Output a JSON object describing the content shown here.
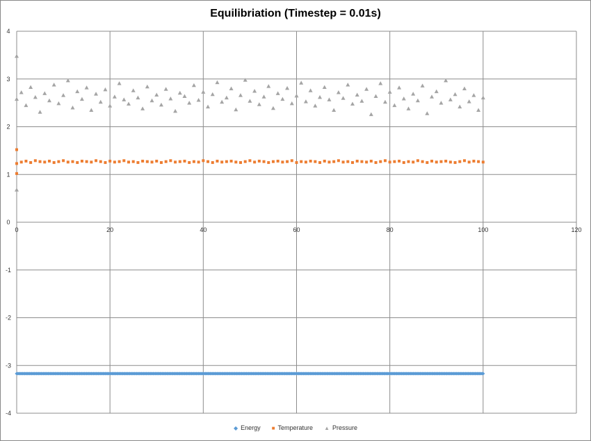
{
  "chart_data": {
    "type": "scatter",
    "title": "Equilibriation (Timestep = 0.01s)",
    "xlabel": "",
    "ylabel": "",
    "xlim": [
      0,
      120
    ],
    "ylim": [
      -4,
      4
    ],
    "xticks": [
      "0",
      "20",
      "40",
      "60",
      "80",
      "100",
      "120"
    ],
    "yticks": [
      "4",
      "3",
      "2",
      "1",
      "0",
      "-1",
      "-2",
      "-3",
      "-4"
    ],
    "grid": true,
    "legend_position": "bottom",
    "series": [
      {
        "name": "Energy",
        "color": "#5b9bd5",
        "marker": "diamond",
        "x": [
          0,
          1,
          2,
          3,
          4,
          5,
          6,
          7,
          8,
          9,
          10,
          11,
          12,
          13,
          14,
          15,
          16,
          17,
          18,
          19,
          20,
          21,
          22,
          23,
          24,
          25,
          26,
          27,
          28,
          29,
          30,
          31,
          32,
          33,
          34,
          35,
          36,
          37,
          38,
          39,
          40,
          41,
          42,
          43,
          44,
          45,
          46,
          47,
          48,
          49,
          50,
          51,
          52,
          53,
          54,
          55,
          56,
          57,
          58,
          59,
          60,
          61,
          62,
          63,
          64,
          65,
          66,
          67,
          68,
          69,
          70,
          71,
          72,
          73,
          74,
          75,
          76,
          77,
          78,
          79,
          80,
          81,
          82,
          83,
          84,
          85,
          86,
          87,
          88,
          89,
          90,
          91,
          92,
          93,
          94,
          95,
          96,
          97,
          98,
          99,
          100
        ],
        "y": [
          -3.17,
          -3.17,
          -3.17,
          -3.17,
          -3.17,
          -3.17,
          -3.17,
          -3.17,
          -3.17,
          -3.17,
          -3.17,
          -3.17,
          -3.17,
          -3.17,
          -3.17,
          -3.17,
          -3.17,
          -3.17,
          -3.17,
          -3.17,
          -3.17,
          -3.17,
          -3.17,
          -3.17,
          -3.17,
          -3.17,
          -3.17,
          -3.17,
          -3.17,
          -3.17,
          -3.17,
          -3.17,
          -3.17,
          -3.17,
          -3.17,
          -3.17,
          -3.17,
          -3.17,
          -3.17,
          -3.17,
          -3.17,
          -3.17,
          -3.17,
          -3.17,
          -3.17,
          -3.17,
          -3.17,
          -3.17,
          -3.17,
          -3.17,
          -3.17,
          -3.17,
          -3.17,
          -3.17,
          -3.17,
          -3.17,
          -3.17,
          -3.17,
          -3.17,
          -3.17,
          -3.17,
          -3.17,
          -3.17,
          -3.17,
          -3.17,
          -3.17,
          -3.17,
          -3.17,
          -3.17,
          -3.17,
          -3.17,
          -3.17,
          -3.17,
          -3.17,
          -3.17,
          -3.17,
          -3.17,
          -3.17,
          -3.17,
          -3.17,
          -3.17,
          -3.17,
          -3.17,
          -3.17,
          -3.17,
          -3.17,
          -3.17,
          -3.17,
          -3.17,
          -3.17,
          -3.17,
          -3.17,
          -3.17,
          -3.17,
          -3.17,
          -3.17,
          -3.17,
          -3.17,
          -3.17,
          -3.17,
          -3.17
        ]
      },
      {
        "name": "Temperature",
        "color": "#ed7d31",
        "marker": "square",
        "x": [
          0,
          0,
          0,
          1,
          2,
          3,
          4,
          5,
          6,
          7,
          8,
          9,
          10,
          11,
          12,
          13,
          14,
          15,
          16,
          17,
          18,
          19,
          20,
          21,
          22,
          23,
          24,
          25,
          26,
          27,
          28,
          29,
          30,
          31,
          32,
          33,
          34,
          35,
          36,
          37,
          38,
          39,
          40,
          41,
          42,
          43,
          44,
          45,
          46,
          47,
          48,
          49,
          50,
          51,
          52,
          53,
          54,
          55,
          56,
          57,
          58,
          59,
          60,
          61,
          62,
          63,
          64,
          65,
          66,
          67,
          68,
          69,
          70,
          71,
          72,
          73,
          74,
          75,
          76,
          77,
          78,
          79,
          80,
          81,
          82,
          83,
          84,
          85,
          86,
          87,
          88,
          89,
          90,
          91,
          92,
          93,
          94,
          95,
          96,
          97,
          98,
          99,
          100
        ],
        "y": [
          1.52,
          1.02,
          1.23,
          1.26,
          1.28,
          1.25,
          1.29,
          1.27,
          1.26,
          1.28,
          1.25,
          1.27,
          1.29,
          1.26,
          1.27,
          1.25,
          1.28,
          1.27,
          1.26,
          1.29,
          1.27,
          1.25,
          1.28,
          1.26,
          1.27,
          1.29,
          1.26,
          1.27,
          1.25,
          1.28,
          1.27,
          1.26,
          1.28,
          1.25,
          1.27,
          1.29,
          1.26,
          1.27,
          1.28,
          1.25,
          1.27,
          1.26,
          1.29,
          1.27,
          1.25,
          1.28,
          1.26,
          1.27,
          1.28,
          1.26,
          1.25,
          1.27,
          1.29,
          1.26,
          1.28,
          1.27,
          1.25,
          1.27,
          1.28,
          1.26,
          1.27,
          1.29,
          1.25,
          1.27,
          1.26,
          1.28,
          1.27,
          1.25,
          1.28,
          1.26,
          1.27,
          1.29,
          1.26,
          1.27,
          1.25,
          1.28,
          1.27,
          1.26,
          1.28,
          1.25,
          1.27,
          1.29,
          1.26,
          1.27,
          1.28,
          1.25,
          1.27,
          1.26,
          1.29,
          1.27,
          1.25,
          1.28,
          1.26,
          1.27,
          1.28,
          1.26,
          1.25,
          1.27,
          1.29,
          1.26,
          1.28,
          1.27,
          1.26
        ]
      },
      {
        "name": "Pressure",
        "color": "#a5a5a5",
        "marker": "triangle",
        "x": [
          0,
          0,
          0,
          1,
          2,
          3,
          4,
          5,
          6,
          7,
          8,
          9,
          10,
          11,
          12,
          13,
          14,
          15,
          16,
          17,
          18,
          19,
          20,
          21,
          22,
          23,
          24,
          25,
          26,
          27,
          28,
          29,
          30,
          31,
          32,
          33,
          34,
          35,
          36,
          37,
          38,
          39,
          40,
          41,
          42,
          43,
          44,
          45,
          46,
          47,
          48,
          49,
          50,
          51,
          52,
          53,
          54,
          55,
          56,
          57,
          58,
          59,
          60,
          61,
          62,
          63,
          64,
          65,
          66,
          67,
          68,
          69,
          70,
          71,
          72,
          73,
          74,
          75,
          76,
          77,
          78,
          79,
          80,
          81,
          82,
          83,
          84,
          85,
          86,
          87,
          88,
          89,
          90,
          91,
          92,
          93,
          94,
          95,
          96,
          97,
          98,
          99,
          100
        ],
        "y": [
          3.48,
          0.68,
          2.58,
          2.72,
          2.45,
          2.83,
          2.62,
          2.31,
          2.7,
          2.55,
          2.88,
          2.49,
          2.66,
          2.97,
          2.4,
          2.74,
          2.58,
          2.82,
          2.35,
          2.69,
          2.52,
          2.78,
          2.44,
          2.63,
          2.91,
          2.57,
          2.48,
          2.76,
          2.61,
          2.38,
          2.84,
          2.55,
          2.67,
          2.46,
          2.79,
          2.59,
          2.33,
          2.71,
          2.64,
          2.5,
          2.87,
          2.56,
          2.73,
          2.42,
          2.68,
          2.93,
          2.52,
          2.61,
          2.8,
          2.36,
          2.66,
          2.98,
          2.54,
          2.75,
          2.47,
          2.63,
          2.85,
          2.39,
          2.7,
          2.58,
          2.81,
          2.49,
          2.65,
          2.92,
          2.53,
          2.76,
          2.44,
          2.62,
          2.83,
          2.57,
          2.35,
          2.72,
          2.6,
          2.88,
          2.48,
          2.67,
          2.54,
          2.79,
          2.26,
          2.64,
          2.91,
          2.52,
          2.73,
          2.45,
          2.82,
          2.59,
          2.38,
          2.69,
          2.55,
          2.86,
          2.28,
          2.63,
          2.74,
          2.5,
          2.97,
          2.57,
          2.68,
          2.42,
          2.8,
          2.53,
          2.66,
          2.35,
          2.61
        ]
      }
    ]
  }
}
